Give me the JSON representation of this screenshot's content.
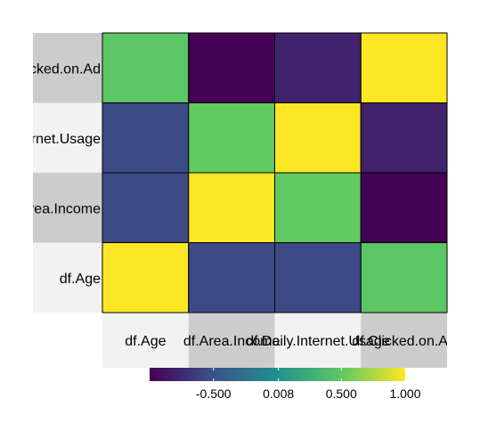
{
  "chart_data": {
    "type": "heatmap",
    "title": "",
    "xlabel": "",
    "ylabel": "",
    "x_labels": [
      "df.Age",
      "df.Area.Income",
      "df.Daily.Internet.Usage",
      "df.Clicked.on.Ad"
    ],
    "y_labels_top_to_bottom": [
      "df.Clicked.on.Ad",
      "df.Daily.Internet.Usage",
      "df.Area.Income",
      "df.Age"
    ],
    "matrix": [
      [
        0.49,
        -1.0,
        -0.79,
        1.0
      ],
      [
        -0.55,
        0.52,
        1.0,
        -0.79
      ],
      [
        -0.55,
        1.0,
        0.52,
        -1.0
      ],
      [
        1.0,
        -0.55,
        -0.55,
        0.49
      ]
    ],
    "value_range": [
      -1.0,
      1.0
    ],
    "legend": {
      "placement": "bottom",
      "tick_labels": [
        "-0.500",
        "0.008",
        "0.500",
        "1.000"
      ],
      "tick_values": [
        -0.5,
        0.008,
        0.5,
        1.0
      ]
    },
    "colormap": [
      "#440154",
      "#3b528b",
      "#21908d",
      "#5dc863",
      "#fde725"
    ]
  }
}
